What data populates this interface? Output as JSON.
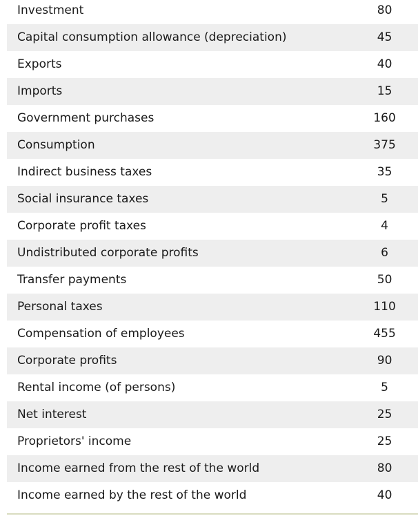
{
  "table": {
    "rows": [
      {
        "label": "Investment",
        "value": "80"
      },
      {
        "label": "Capital consumption allowance (depreciation)",
        "value": "45"
      },
      {
        "label": "Exports",
        "value": "40"
      },
      {
        "label": "Imports",
        "value": "15"
      },
      {
        "label": "Government purchases",
        "value": "160"
      },
      {
        "label": "Consumption",
        "value": "375"
      },
      {
        "label": "Indirect business taxes",
        "value": "35"
      },
      {
        "label": "Social insurance taxes",
        "value": "5"
      },
      {
        "label": "Corporate profit taxes",
        "value": "4"
      },
      {
        "label": "Undistributed corporate profits",
        "value": "6"
      },
      {
        "label": "Transfer payments",
        "value": "50"
      },
      {
        "label": "Personal taxes",
        "value": "110"
      },
      {
        "label": "Compensation of employees",
        "value": "455"
      },
      {
        "label": "Corporate profits",
        "value": "90"
      },
      {
        "label": "Rental income (of persons)",
        "value": "5"
      },
      {
        "label": "Net interest",
        "value": "25"
      },
      {
        "label": "Proprietors' income",
        "value": "25"
      },
      {
        "label": "Income earned from the rest of the world",
        "value": "80"
      },
      {
        "label": "Income earned by the rest of the world",
        "value": "40"
      }
    ]
  }
}
